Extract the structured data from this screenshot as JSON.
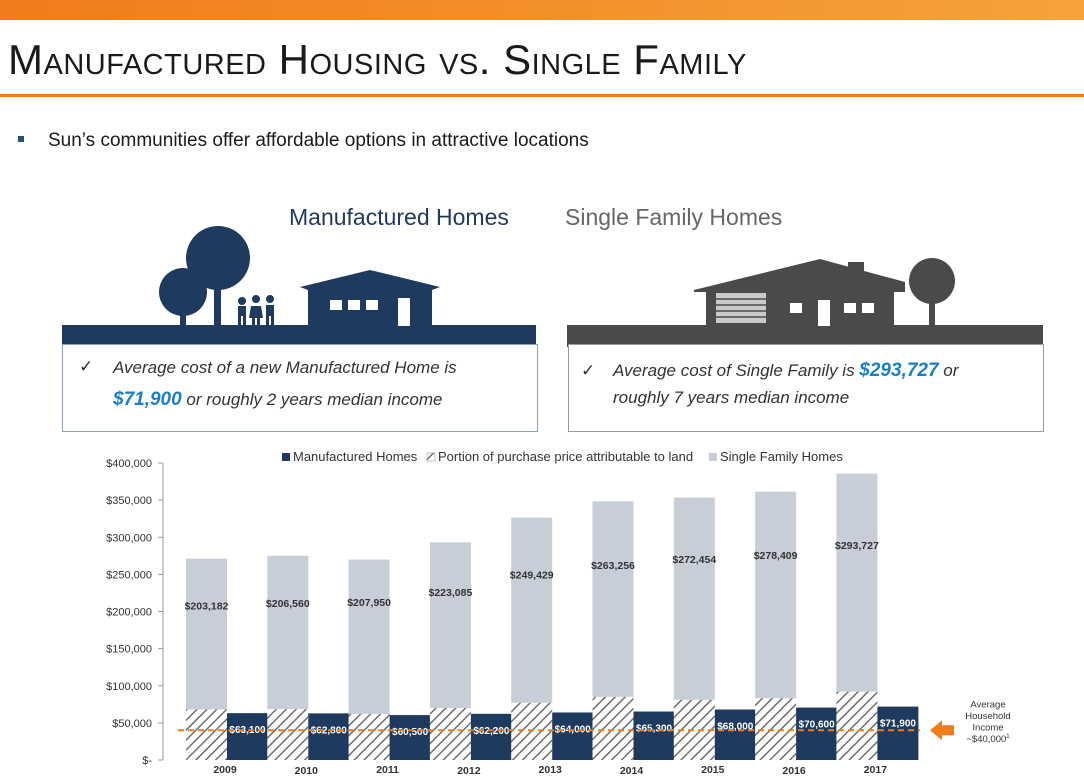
{
  "slide": {
    "title": "Manufactured Housing vs. Single Family",
    "bullet": "Sun’s communities offer affordable options in attractive locations"
  },
  "panels": {
    "manufactured": {
      "header": "Manufactured Homes",
      "check": "✓",
      "text_line1": "Average cost of a new Manufactured Home is",
      "price": "$71,900",
      "text_line2": " or roughly 2 years median income"
    },
    "single_family": {
      "header": "Single Family Homes",
      "check": "✓",
      "text_line1a": "Average cost of Single Family is ",
      "price": "$293,727",
      "text_line1b": " or",
      "text_line2": "roughly 7 years median income"
    }
  },
  "colors": {
    "manufactured": "#1f3a5f",
    "single_family": "#c7ced8",
    "land_hatch": "#6e6e6e",
    "income_line": "#f07c1a",
    "sf_dark": "#4a4a4a"
  },
  "chart_data": {
    "type": "bar",
    "categories": [
      "2009",
      "2010",
      "2011",
      "2012",
      "2013",
      "2014",
      "2015",
      "2016",
      "2017"
    ],
    "series": [
      {
        "name": "Manufactured Homes",
        "values": [
          63100,
          62800,
          60500,
          62200,
          64000,
          65300,
          68000,
          70600,
          71900
        ],
        "labels": [
          "$63,100",
          "$62,800",
          "$60,500",
          "$62,200",
          "$64,000",
          "$65,300",
          "$68,000",
          "$70,600",
          "$71,900"
        ]
      },
      {
        "name": "Portion of purchase price attributable to land",
        "values": [
          68000,
          68500,
          62000,
          70000,
          77000,
          85000,
          81000,
          83000,
          92000
        ]
      },
      {
        "name": "Single Family Homes",
        "values": [
          203182,
          206560,
          207950,
          223085,
          249429,
          263256,
          272454,
          278409,
          293727
        ],
        "labels": [
          "$203,182",
          "$206,560",
          "$207,950",
          "$223,085",
          "$249,429",
          "$263,256",
          "$272,454",
          "$278,409",
          "$293,727"
        ]
      }
    ],
    "yticks": [
      "$400,000",
      "$350,000",
      "$300,000",
      "$250,000",
      "$200,000",
      "$150,000",
      "$100,000",
      "$50,000",
      "$-"
    ],
    "ylim": [
      0,
      400000
    ],
    "income_line": {
      "value": 40000,
      "label_lines": [
        "Average",
        "Household",
        "Income",
        "~$40,000"
      ],
      "footnote": "1"
    },
    "legend_position": "top-center"
  }
}
